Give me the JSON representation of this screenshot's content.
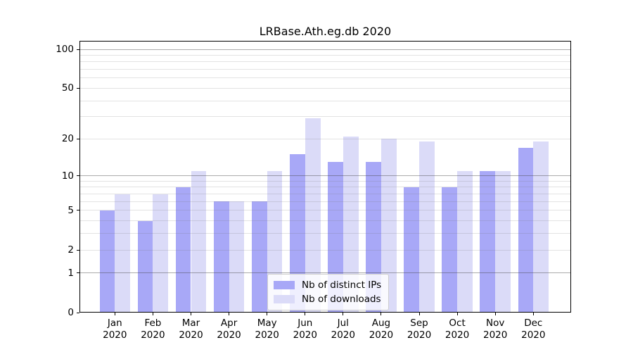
{
  "title": "LRBase.Ath.eg.db 2020",
  "colors": {
    "distinct_ips": "#a8a8f7",
    "downloads": "#dbdbf8",
    "frame": "#000000",
    "legend_border": "#cfcfcf"
  },
  "legend": {
    "entries": [
      {
        "label": "Nb of distinct IPs"
      },
      {
        "label": "Nb of downloads"
      }
    ]
  },
  "chart_data": {
    "type": "bar",
    "title": "LRBase.Ath.eg.db 2020",
    "categories": [
      "Jan 2020",
      "Feb 2020",
      "Mar 2020",
      "Apr 2020",
      "May 2020",
      "Jun 2020",
      "Jul 2020",
      "Aug 2020",
      "Sep 2020",
      "Oct 2020",
      "Nov 2020",
      "Dec 2020"
    ],
    "category_line1": [
      "Jan",
      "Feb",
      "Mar",
      "Apr",
      "May",
      "Jun",
      "Jul",
      "Aug",
      "Sep",
      "Oct",
      "Nov",
      "Dec"
    ],
    "category_line2": [
      "2020",
      "2020",
      "2020",
      "2020",
      "2020",
      "2020",
      "2020",
      "2020",
      "2020",
      "2020",
      "2020",
      "2020"
    ],
    "series": [
      {
        "name": "Nb of distinct IPs",
        "color": "#a8a8f7",
        "values": [
          5,
          4,
          8,
          6,
          6,
          15,
          13,
          13,
          8,
          8,
          11,
          17
        ]
      },
      {
        "name": "Nb of downloads",
        "color": "#dbdbf8",
        "values": [
          7,
          7,
          11,
          6,
          11,
          29,
          21,
          20,
          19,
          11,
          11,
          19
        ]
      }
    ],
    "xlabel": "",
    "ylabel": "",
    "yscale": "log1p",
    "yticks": [
      0,
      1,
      2,
      5,
      10,
      20,
      50,
      100
    ],
    "ylim": [
      0,
      116
    ],
    "grid": {
      "minor": [
        2,
        3,
        4,
        5,
        6,
        7,
        8,
        9,
        20,
        30,
        40,
        50,
        60,
        70,
        80,
        90
      ],
      "major": [
        1,
        10,
        100
      ]
    },
    "legend_position": "lower-center"
  }
}
